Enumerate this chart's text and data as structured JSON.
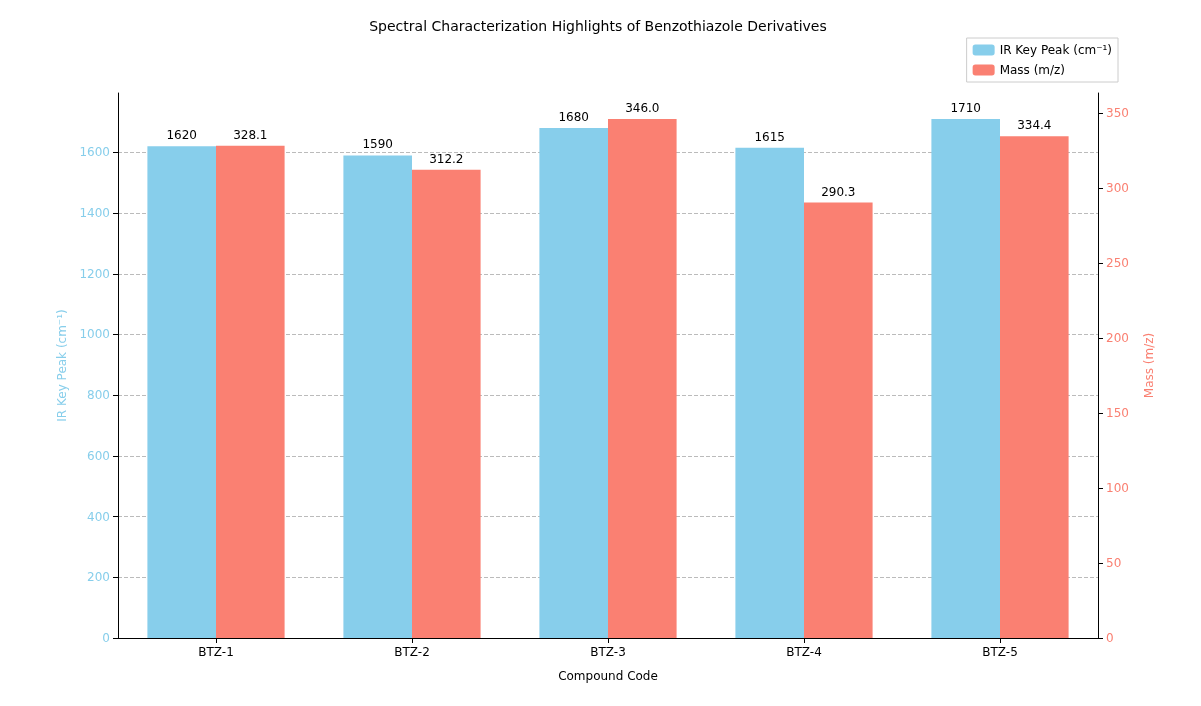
{
  "chart_data": {
    "type": "bar",
    "title": "Spectral Characterization Highlights of Benzothiazole Derivatives",
    "xlabel": "Compound Code",
    "ylabel": "IR Key Peak (cm⁻¹)",
    "y2label": "Mass (m/z)",
    "categories": [
      "BTZ-1",
      "BTZ-2",
      "BTZ-3",
      "BTZ-4",
      "BTZ-5"
    ],
    "series": [
      {
        "name": "IR Key Peak (cm⁻¹)",
        "color": "#87ceeb",
        "values": [
          1620,
          1590,
          1680,
          1615,
          1710
        ],
        "value_labels": [
          "1620",
          "1590",
          "1680",
          "1615",
          "1710"
        ]
      },
      {
        "name": "Mass (m/z)",
        "color": "#fa8072",
        "axis": "y2",
        "values": [
          328.1,
          312.2,
          346.0,
          290.3,
          334.4
        ],
        "value_labels": [
          "328.1",
          "312.2",
          "346.0",
          "290.3",
          "334.4"
        ]
      }
    ],
    "ylim": [
      0,
      1795.5
    ],
    "yticks": [
      0,
      200,
      400,
      600,
      800,
      1000,
      1200,
      1400,
      1600
    ],
    "y2lim": [
      0,
      363.3
    ],
    "y2ticks": [
      0,
      50,
      100,
      150,
      200,
      250,
      300,
      350
    ],
    "grid": "y",
    "legend": "top right"
  }
}
